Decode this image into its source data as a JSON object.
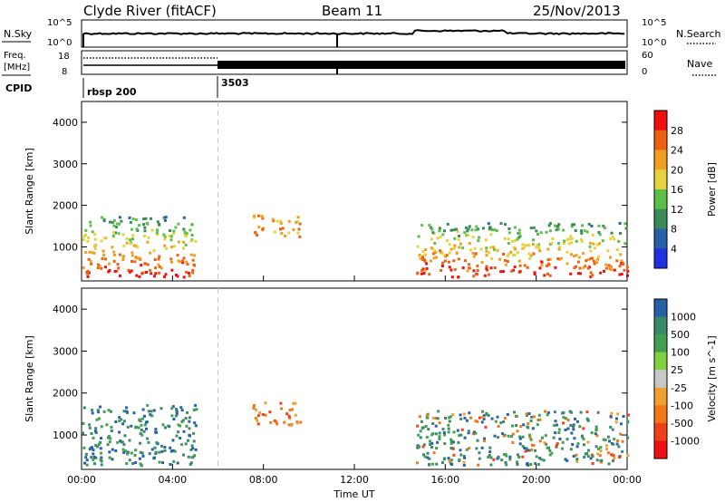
{
  "header": {
    "title": "Clyde River (fitACF)",
    "beam": "Beam 11",
    "date": "25/Nov/2013"
  },
  "top_panels": {
    "nsky_label": "N.Sky",
    "nsearch_label": "N.Search",
    "freq_label_line1": "Freq.",
    "freq_label_line2": "[MHz]",
    "nave_label": "Nave",
    "cpid_label": "CPID",
    "left_tick_hi": "10^5",
    "left_tick_lo": "10^0",
    "right_tick_hi": "10^5",
    "right_tick_lo": "10^0",
    "freq_tick_hi": "18",
    "freq_tick_lo": "8",
    "nave_tick_hi": "60",
    "nave_tick_lo": "0",
    "cpid_segments": [
      {
        "label": "rbsp 200",
        "start_hour": 0
      },
      {
        "label": "3503",
        "start_hour": 6
      }
    ]
  },
  "colors": {
    "power": [
      "#2030e0",
      "#2860a8",
      "#3a8a5a",
      "#5ac048",
      "#e6d23c",
      "#f0a020",
      "#f06010",
      "#ee1010"
    ],
    "velocity": [
      "#ee1010",
      "#f04018",
      "#f07818",
      "#f0a030",
      "#c8c8c8",
      "#80d040",
      "#40a050",
      "#3a8a6a",
      "#2860a8"
    ],
    "grey": "#c8c8c8"
  },
  "chart_data": [
    {
      "type": "heatmap",
      "title": "",
      "xlabel": "",
      "ylabel": "Slant Range [km]",
      "xlim": [
        0,
        24
      ],
      "ylim": [
        180,
        4500
      ],
      "x_ticks": [
        "00:00",
        "04:00",
        "08:00",
        "12:00",
        "16:00",
        "20:00",
        "00:00"
      ],
      "y_ticks": [
        1000,
        2000,
        3000,
        4000
      ],
      "colorbar": {
        "label": "Power [dB]",
        "ticks": [
          "4",
          "8",
          "12",
          "16",
          "20",
          "24",
          "28"
        ]
      },
      "echo_regions": [
        {
          "t_start": 0.0,
          "t_end": 5.0,
          "range_km": [
            300,
            1750
          ],
          "dominant_level": "24-28 dB"
        },
        {
          "t_start": 7.5,
          "t_end": 9.6,
          "range_km": [
            1250,
            1800
          ],
          "dominant_level": "20-24 dB"
        },
        {
          "t_start": 14.7,
          "t_end": 24.0,
          "range_km": [
            300,
            1600
          ],
          "dominant_level": "24-28 dB"
        }
      ]
    },
    {
      "type": "heatmap",
      "title": "",
      "xlabel": "Time UT",
      "ylabel": "Slant Range [km]",
      "xlim": [
        0,
        24
      ],
      "ylim": [
        180,
        4500
      ],
      "x_ticks": [
        "00:00",
        "04:00",
        "08:00",
        "12:00",
        "16:00",
        "20:00",
        "00:00"
      ],
      "y_ticks": [
        1000,
        2000,
        3000,
        4000
      ],
      "colorbar": {
        "label": "Velocity [m s^-1]",
        "ticks": [
          "1000",
          "500",
          "100",
          "25",
          "-25",
          "-100",
          "-500",
          "-1000"
        ]
      },
      "echo_regions": [
        {
          "t_start": 0.0,
          "t_end": 5.0,
          "range_km": [
            300,
            1750
          ],
          "dominant_level": "100-500 m/s"
        },
        {
          "t_start": 7.5,
          "t_end": 9.6,
          "range_km": [
            1250,
            1800
          ],
          "dominant_level": "-100 to -500 m/s"
        },
        {
          "t_start": 14.7,
          "t_end": 24.0,
          "range_km": [
            300,
            1600
          ],
          "dominant_level": "100-500 m/s"
        }
      ]
    }
  ]
}
